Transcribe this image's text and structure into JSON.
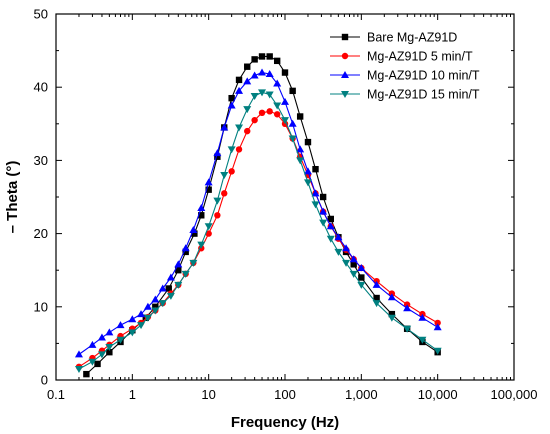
{
  "chart_data": {
    "type": "line",
    "title": "",
    "xlabel": "Frequency (Hz)",
    "ylabel": "– Theta (°)",
    "xscale": "log",
    "xlim": [
      0.1,
      100000
    ],
    "ylim": [
      0,
      50
    ],
    "xticks": [
      0.1,
      1,
      10,
      100,
      1000,
      10000,
      100000
    ],
    "xtick_labels": [
      "0.1",
      "1",
      "10",
      "100",
      "1,000",
      "10,000",
      "100,000"
    ],
    "yticks": [
      0,
      10,
      20,
      30,
      40,
      50
    ],
    "ytick_labels": [
      "0",
      "10",
      "20",
      "30",
      "40",
      "50"
    ],
    "grid": false,
    "legend_position": "top-right",
    "series": [
      {
        "name": "Bare Mg-AZ91D",
        "color": "#000000",
        "marker": "square",
        "x": [
          0.25,
          0.35,
          0.5,
          0.7,
          1,
          1.5,
          2,
          3,
          4,
          5,
          6.5,
          8,
          10,
          13,
          16,
          20,
          25,
          32,
          40,
          50,
          63,
          79,
          100,
          126,
          158,
          200,
          251,
          316,
          398,
          501,
          631,
          794,
          1000,
          1585,
          2512,
          3981,
          6310,
          10000
        ],
        "y": [
          0.8,
          2.2,
          3.8,
          5.2,
          6.8,
          8.5,
          10.0,
          12.5,
          15.0,
          17.5,
          20.0,
          22.5,
          26.0,
          30.5,
          34.5,
          38.5,
          41.0,
          42.8,
          43.8,
          44.2,
          44.2,
          43.6,
          42.0,
          39.5,
          36.0,
          32.5,
          28.8,
          25.0,
          22.0,
          19.5,
          17.5,
          15.8,
          14.0,
          11.2,
          9.0,
          7.0,
          5.2,
          3.8
        ]
      },
      {
        "name": "Mg-AZ91D 5 min/T",
        "color": "#ff0000",
        "marker": "circle",
        "x": [
          0.2,
          0.3,
          0.4,
          0.5,
          0.7,
          1,
          1.3,
          1.6,
          2,
          2.5,
          3.2,
          4,
          5,
          6.3,
          8,
          10,
          13,
          16,
          20,
          25,
          32,
          40,
          50,
          63,
          79,
          100,
          126,
          158,
          200,
          251,
          316,
          398,
          501,
          631,
          794,
          1000,
          1585,
          2512,
          3981,
          6310,
          10000
        ],
        "y": [
          1.8,
          3.0,
          4.0,
          4.8,
          6.0,
          7.0,
          7.8,
          8.6,
          9.5,
          10.5,
          11.8,
          13.0,
          14.5,
          16.0,
          18.0,
          20.0,
          22.5,
          25.5,
          28.5,
          31.5,
          34.0,
          35.5,
          36.5,
          36.7,
          36.3,
          35.0,
          33.0,
          30.5,
          28.0,
          25.5,
          23.0,
          21.0,
          19.3,
          17.8,
          16.5,
          15.3,
          13.5,
          11.8,
          10.3,
          9.0,
          7.8
        ]
      },
      {
        "name": "Mg-AZ91D 10 min/T",
        "color": "#0000ff",
        "marker": "triangle-up",
        "x": [
          0.2,
          0.3,
          0.4,
          0.5,
          0.7,
          1,
          1.3,
          1.6,
          2,
          2.5,
          3.2,
          4,
          5,
          6.3,
          8,
          10,
          13,
          16,
          20,
          25,
          32,
          40,
          50,
          63,
          79,
          100,
          126,
          158,
          200,
          251,
          316,
          398,
          501,
          631,
          794,
          1000,
          1585,
          2512,
          3981,
          6310,
          10000
        ],
        "y": [
          3.5,
          4.8,
          5.8,
          6.5,
          7.5,
          8.3,
          9.0,
          10.0,
          11.0,
          12.5,
          14.0,
          15.8,
          18.0,
          20.5,
          23.5,
          27.0,
          31.0,
          34.5,
          37.5,
          39.5,
          40.8,
          41.6,
          42.0,
          41.8,
          40.5,
          38.0,
          35.0,
          31.5,
          28.5,
          25.5,
          23.0,
          21.0,
          19.5,
          18.0,
          16.5,
          15.3,
          13.0,
          11.3,
          9.8,
          8.5,
          7.2
        ]
      },
      {
        "name": "Mg-AZ91D 15 min/T",
        "color": "#008080",
        "marker": "triangle-down",
        "x": [
          0.2,
          0.3,
          0.4,
          0.5,
          0.7,
          1,
          1.3,
          1.6,
          2,
          2.5,
          3.2,
          4,
          5,
          6.3,
          8,
          10,
          13,
          16,
          20,
          25,
          32,
          40,
          50,
          63,
          79,
          100,
          126,
          158,
          200,
          251,
          316,
          398,
          501,
          631,
          794,
          1000,
          1585,
          2512,
          3981,
          6310,
          10000
        ],
        "y": [
          1.5,
          2.5,
          3.5,
          4.5,
          5.5,
          6.5,
          7.5,
          8.5,
          9.5,
          10.5,
          11.5,
          13.0,
          14.5,
          16.0,
          18.5,
          21.0,
          24.5,
          28.0,
          31.5,
          34.5,
          37.0,
          38.8,
          39.3,
          39.0,
          37.5,
          35.5,
          33.0,
          30.0,
          27.0,
          24.0,
          21.5,
          19.3,
          17.5,
          16.0,
          14.5,
          13.0,
          10.5,
          8.5,
          7.0,
          5.5,
          4.0
        ]
      }
    ]
  }
}
